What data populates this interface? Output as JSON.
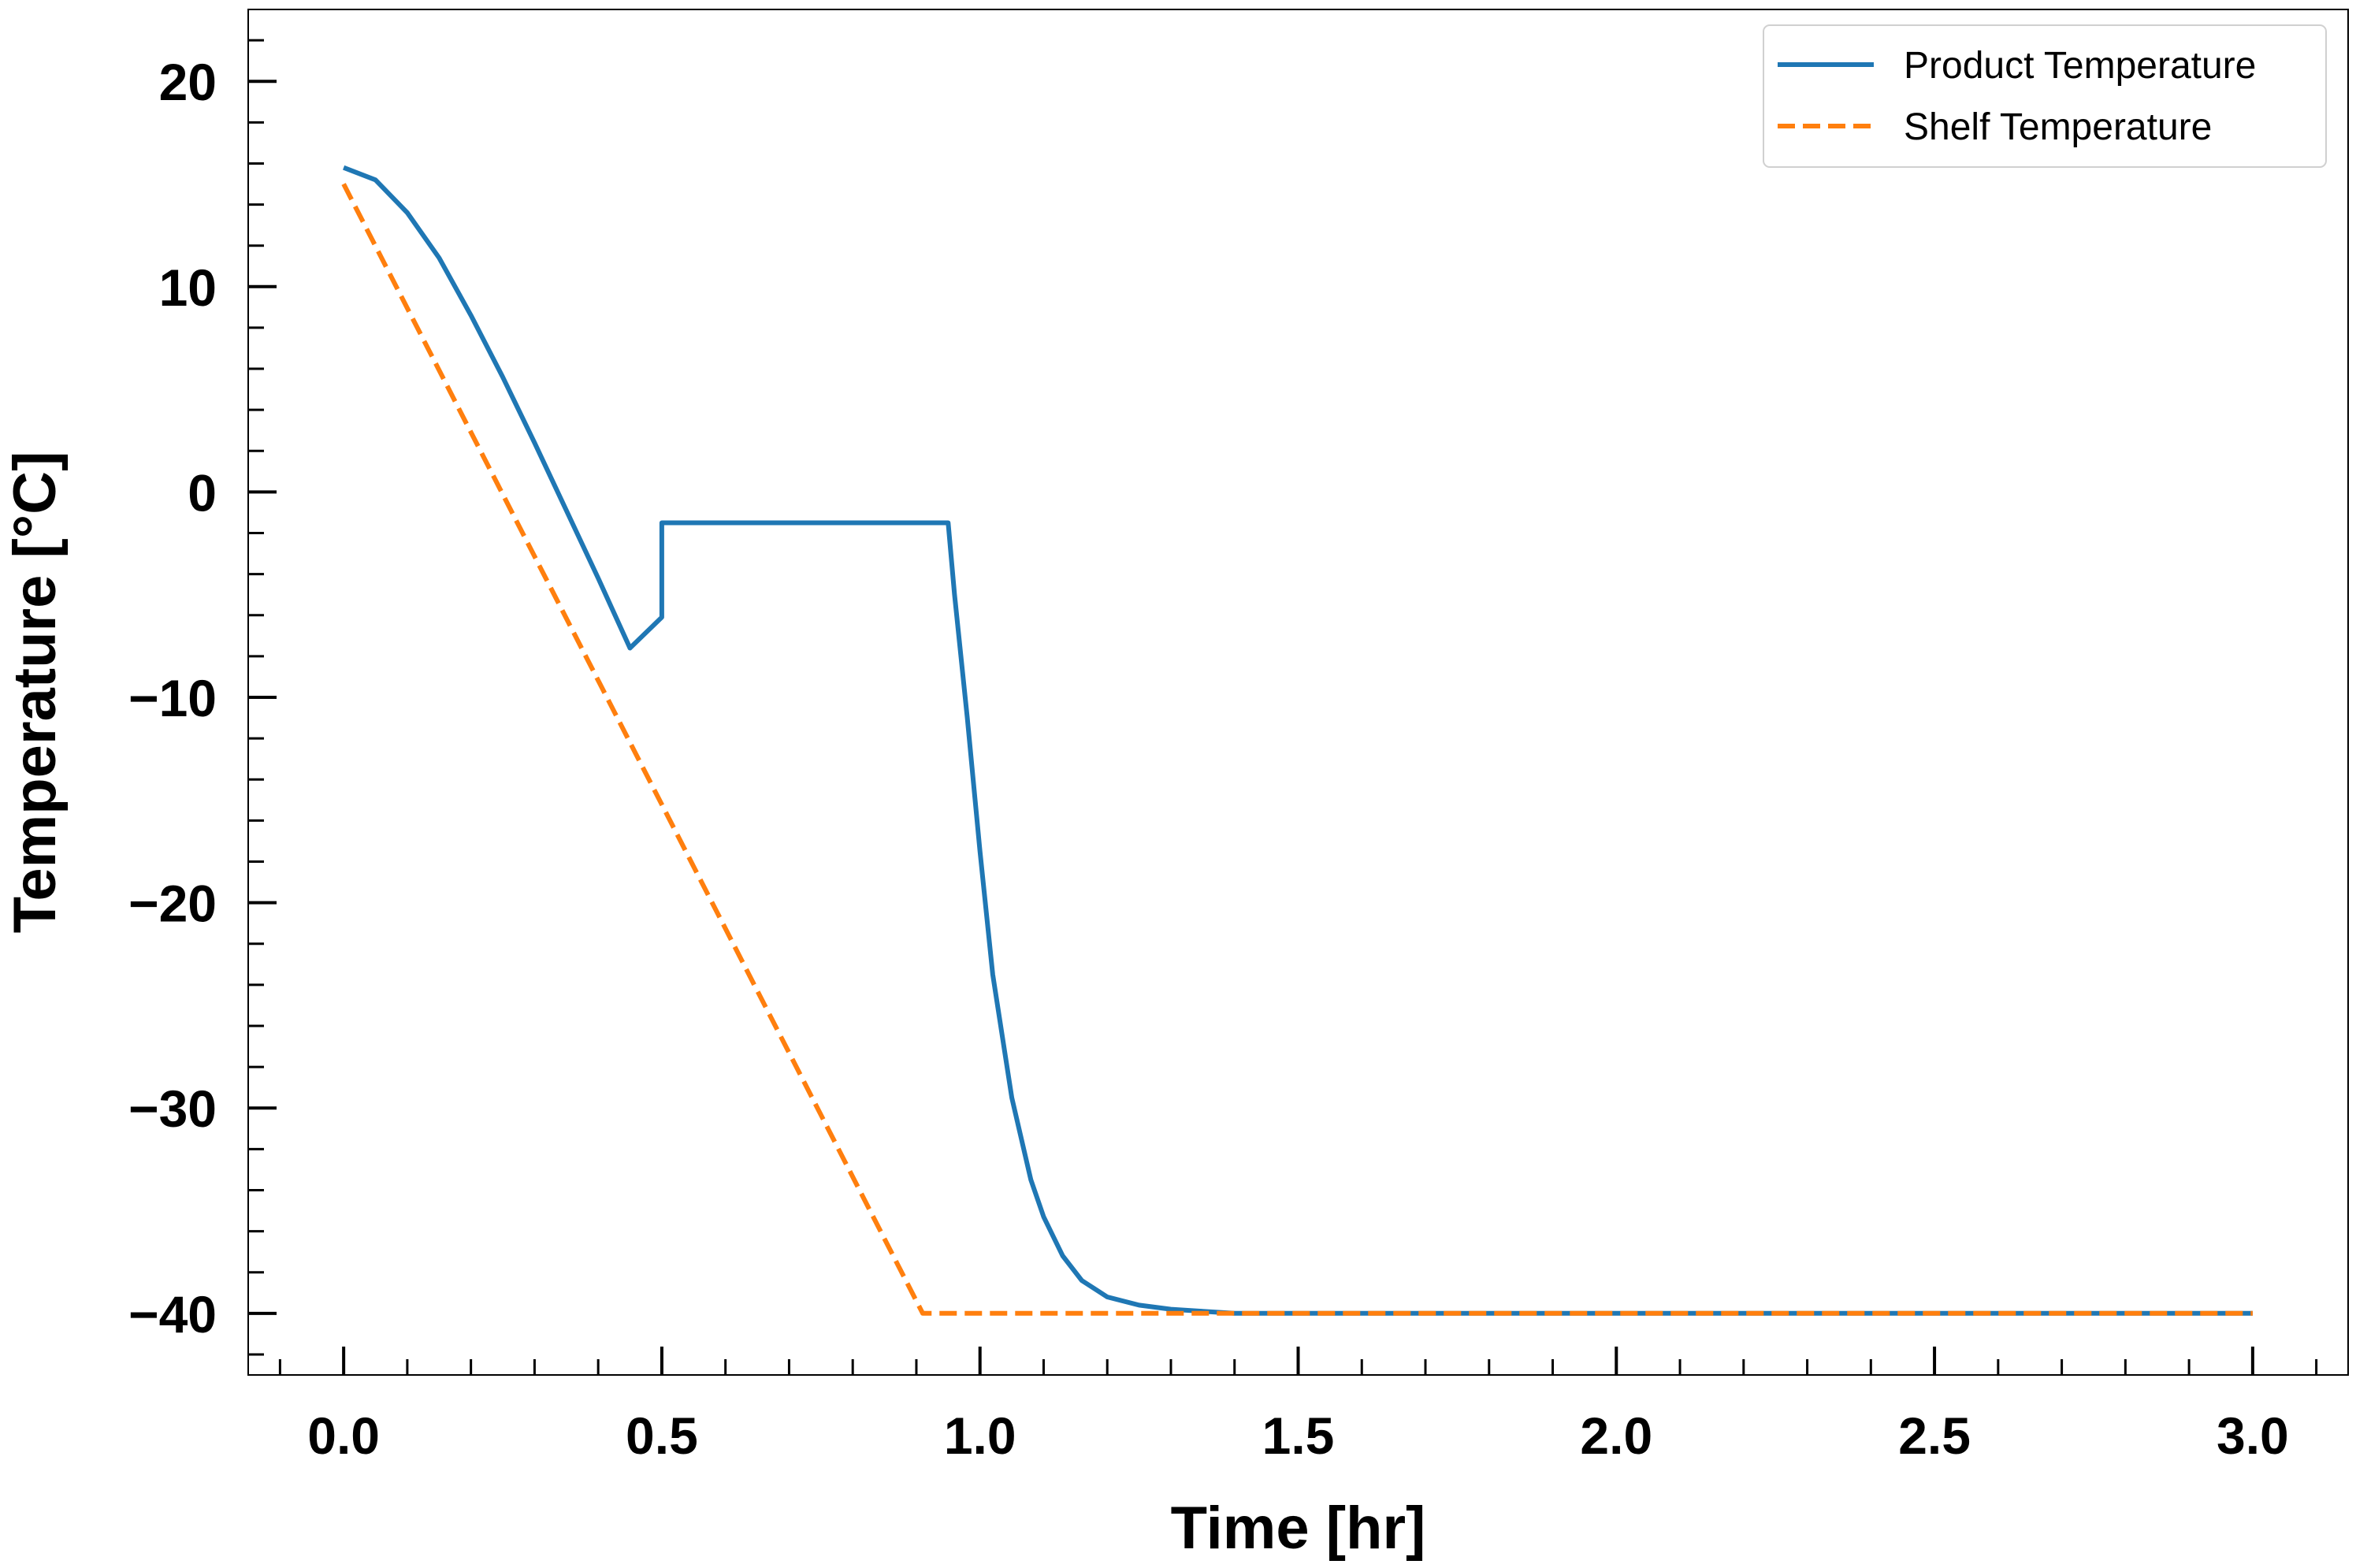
{
  "chart_data": {
    "type": "line",
    "xlabel": "Time [hr]",
    "ylabel": "Temperature [°C]",
    "xlim": [
      -0.15,
      3.15
    ],
    "ylim": [
      -43,
      23.5
    ],
    "x_ticks": [
      0.0,
      0.5,
      1.0,
      1.5,
      2.0,
      2.5,
      3.0
    ],
    "x_tick_labels": [
      "0.0",
      "0.5",
      "1.0",
      "1.5",
      "2.0",
      "2.5",
      "3.0"
    ],
    "y_ticks": [
      -40,
      -30,
      -20,
      -10,
      0,
      10,
      20
    ],
    "y_tick_labels": [
      "−40",
      "−30",
      "−20",
      "−10",
      "0",
      "10",
      "20"
    ],
    "grid": false,
    "legend_position": "top-right",
    "series": [
      {
        "name": "Product Temperature",
        "color": "#1f77b4",
        "style": "solid",
        "x": [
          0.0,
          0.05,
          0.1,
          0.15,
          0.2,
          0.25,
          0.3,
          0.35,
          0.4,
          0.45,
          0.5,
          0.5,
          0.6,
          0.7,
          0.8,
          0.95,
          0.96,
          0.98,
          1.0,
          1.02,
          1.05,
          1.08,
          1.1,
          1.13,
          1.16,
          1.2,
          1.25,
          1.3,
          1.35,
          1.4,
          1.5,
          1.6,
          2.0,
          2.5,
          3.0
        ],
        "y": [
          15.8,
          15.2,
          13.6,
          11.4,
          8.6,
          5.6,
          2.4,
          -0.9,
          -4.2,
          -7.6,
          -6.1,
          -1.5,
          -1.5,
          -1.5,
          -1.5,
          -1.5,
          -5.0,
          -11.0,
          -17.5,
          -23.5,
          -29.5,
          -33.5,
          -35.3,
          -37.2,
          -38.4,
          -39.2,
          -39.6,
          -39.8,
          -39.9,
          -40.0,
          -40.0,
          -40.0,
          -40.0,
          -40.0,
          -40.0
        ]
      },
      {
        "name": "Shelf Temperature",
        "color": "#ff7f0e",
        "style": "dashed",
        "x": [
          0.0,
          0.91,
          3.0
        ],
        "y": [
          15.0,
          -40.0,
          -40.0
        ]
      }
    ]
  }
}
